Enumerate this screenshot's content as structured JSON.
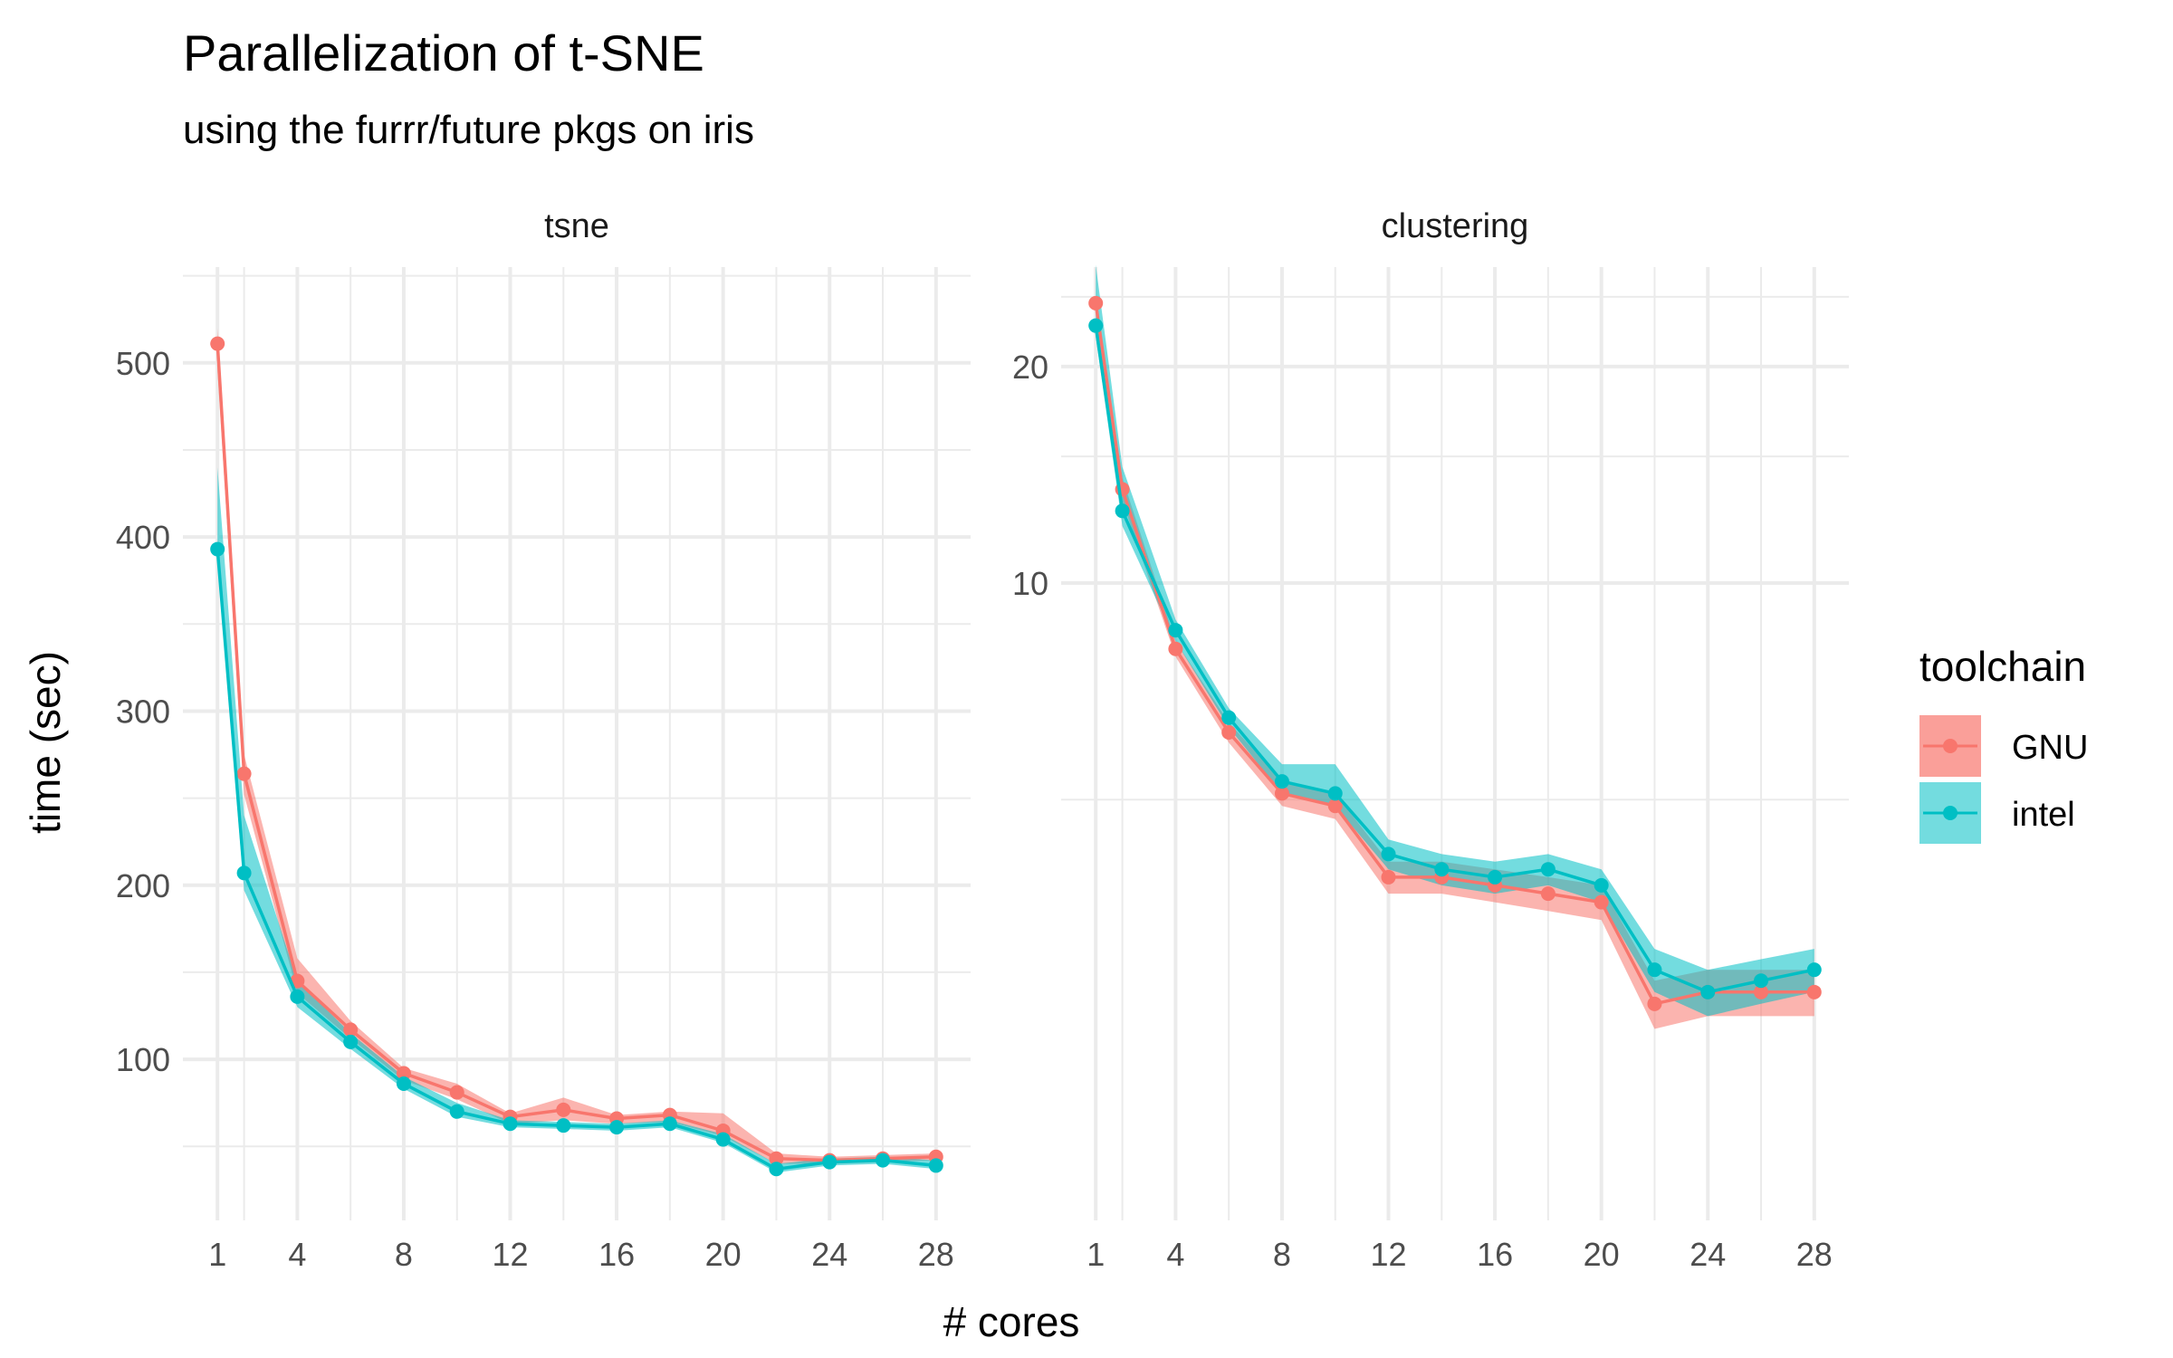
{
  "title": "Parallelization of t-SNE",
  "subtitle": "using the furrr/future pkgs on iris",
  "xlabel": "# cores",
  "ylabel": "time (sec)",
  "legend": {
    "title": "toolchain",
    "position": "right",
    "entries": [
      {
        "name": "GNU",
        "color": "#F8766D"
      },
      {
        "name": "intel",
        "color": "#00BFC4"
      }
    ]
  },
  "chart_data": [
    {
      "type": "line",
      "panel": "tsne",
      "x": [
        1,
        2,
        4,
        6,
        8,
        10,
        12,
        14,
        16,
        18,
        20,
        22,
        24,
        26,
        28
      ],
      "xticks": [
        1,
        4,
        8,
        12,
        16,
        20,
        24,
        28
      ],
      "xlim": [
        -0.3,
        29.3
      ],
      "ylim": [
        7.5,
        555
      ],
      "yticks": [
        100,
        200,
        300,
        400,
        500
      ],
      "grid": true,
      "ribbon": true,
      "series": [
        {
          "name": "GNU",
          "color": "#F8766D",
          "values": [
            511,
            264,
            145,
            117,
            92,
            81,
            67,
            71,
            66,
            68,
            59,
            43,
            42,
            43,
            44
          ],
          "upper": [
            520,
            275,
            158,
            122,
            95,
            86,
            69,
            78,
            68,
            70,
            69,
            46,
            44,
            45,
            46
          ],
          "lower": [
            495,
            252,
            138,
            112,
            88,
            77,
            63,
            65,
            63,
            64,
            56,
            40,
            40,
            41,
            42
          ]
        },
        {
          "name": "intel",
          "color": "#00BFC4",
          "values": [
            393,
            207,
            136,
            110,
            86,
            70,
            63,
            62,
            61,
            63,
            54,
            37,
            41,
            42,
            39
          ],
          "upper": [
            440,
            240,
            145,
            115,
            90,
            75,
            65,
            64,
            63,
            65,
            57,
            40,
            43,
            44,
            42
          ],
          "lower": [
            385,
            197,
            130,
            106,
            83,
            67,
            61,
            60,
            59,
            61,
            52,
            35,
            39,
            40,
            37
          ]
        }
      ]
    },
    {
      "type": "line",
      "panel": "clustering",
      "x": [
        1,
        2,
        4,
        6,
        8,
        10,
        12,
        14,
        16,
        18,
        20,
        22,
        24,
        26,
        28
      ],
      "xticks": [
        1,
        4,
        8,
        12,
        16,
        20,
        24,
        28
      ],
      "xlim": [
        -0.3,
        29.3
      ],
      "ylim": [
        1.3,
        27.5
      ],
      "yticks": [
        10,
        20
      ],
      "grid": true,
      "ribbon": true,
      "series": [
        {
          "name": "GNU",
          "color": "#F8766D",
          "values": [
            24.5,
            13.5,
            8.1,
            6.2,
            5.1,
            4.9,
            3.9,
            3.9,
            3.8,
            3.7,
            3.6,
            2.6,
            2.7,
            2.7,
            2.7
          ],
          "upper": [
            25.0,
            14.0,
            8.3,
            6.4,
            5.3,
            5.1,
            4.1,
            4.1,
            4.0,
            3.9,
            3.8,
            2.8,
            2.9,
            2.9,
            2.9
          ],
          "lower": [
            24.0,
            13.0,
            7.9,
            6.0,
            4.9,
            4.7,
            3.7,
            3.7,
            3.6,
            3.5,
            3.4,
            2.4,
            2.5,
            2.5,
            2.5
          ]
        },
        {
          "name": "intel",
          "color": "#00BFC4",
          "values": [
            22.8,
            12.6,
            8.6,
            6.5,
            5.3,
            5.1,
            4.2,
            4.0,
            3.9,
            4.0,
            3.8,
            2.9,
            2.7,
            2.8,
            2.9
          ],
          "upper": [
            27.7,
            14.5,
            8.9,
            6.7,
            5.6,
            5.6,
            4.4,
            4.2,
            4.1,
            4.2,
            4.0,
            3.1,
            2.9,
            3.0,
            3.1
          ],
          "lower": [
            22.0,
            12.0,
            8.3,
            6.3,
            5.1,
            4.9,
            4.0,
            3.8,
            3.7,
            3.8,
            3.6,
            2.7,
            2.5,
            2.6,
            2.7
          ]
        }
      ]
    }
  ]
}
